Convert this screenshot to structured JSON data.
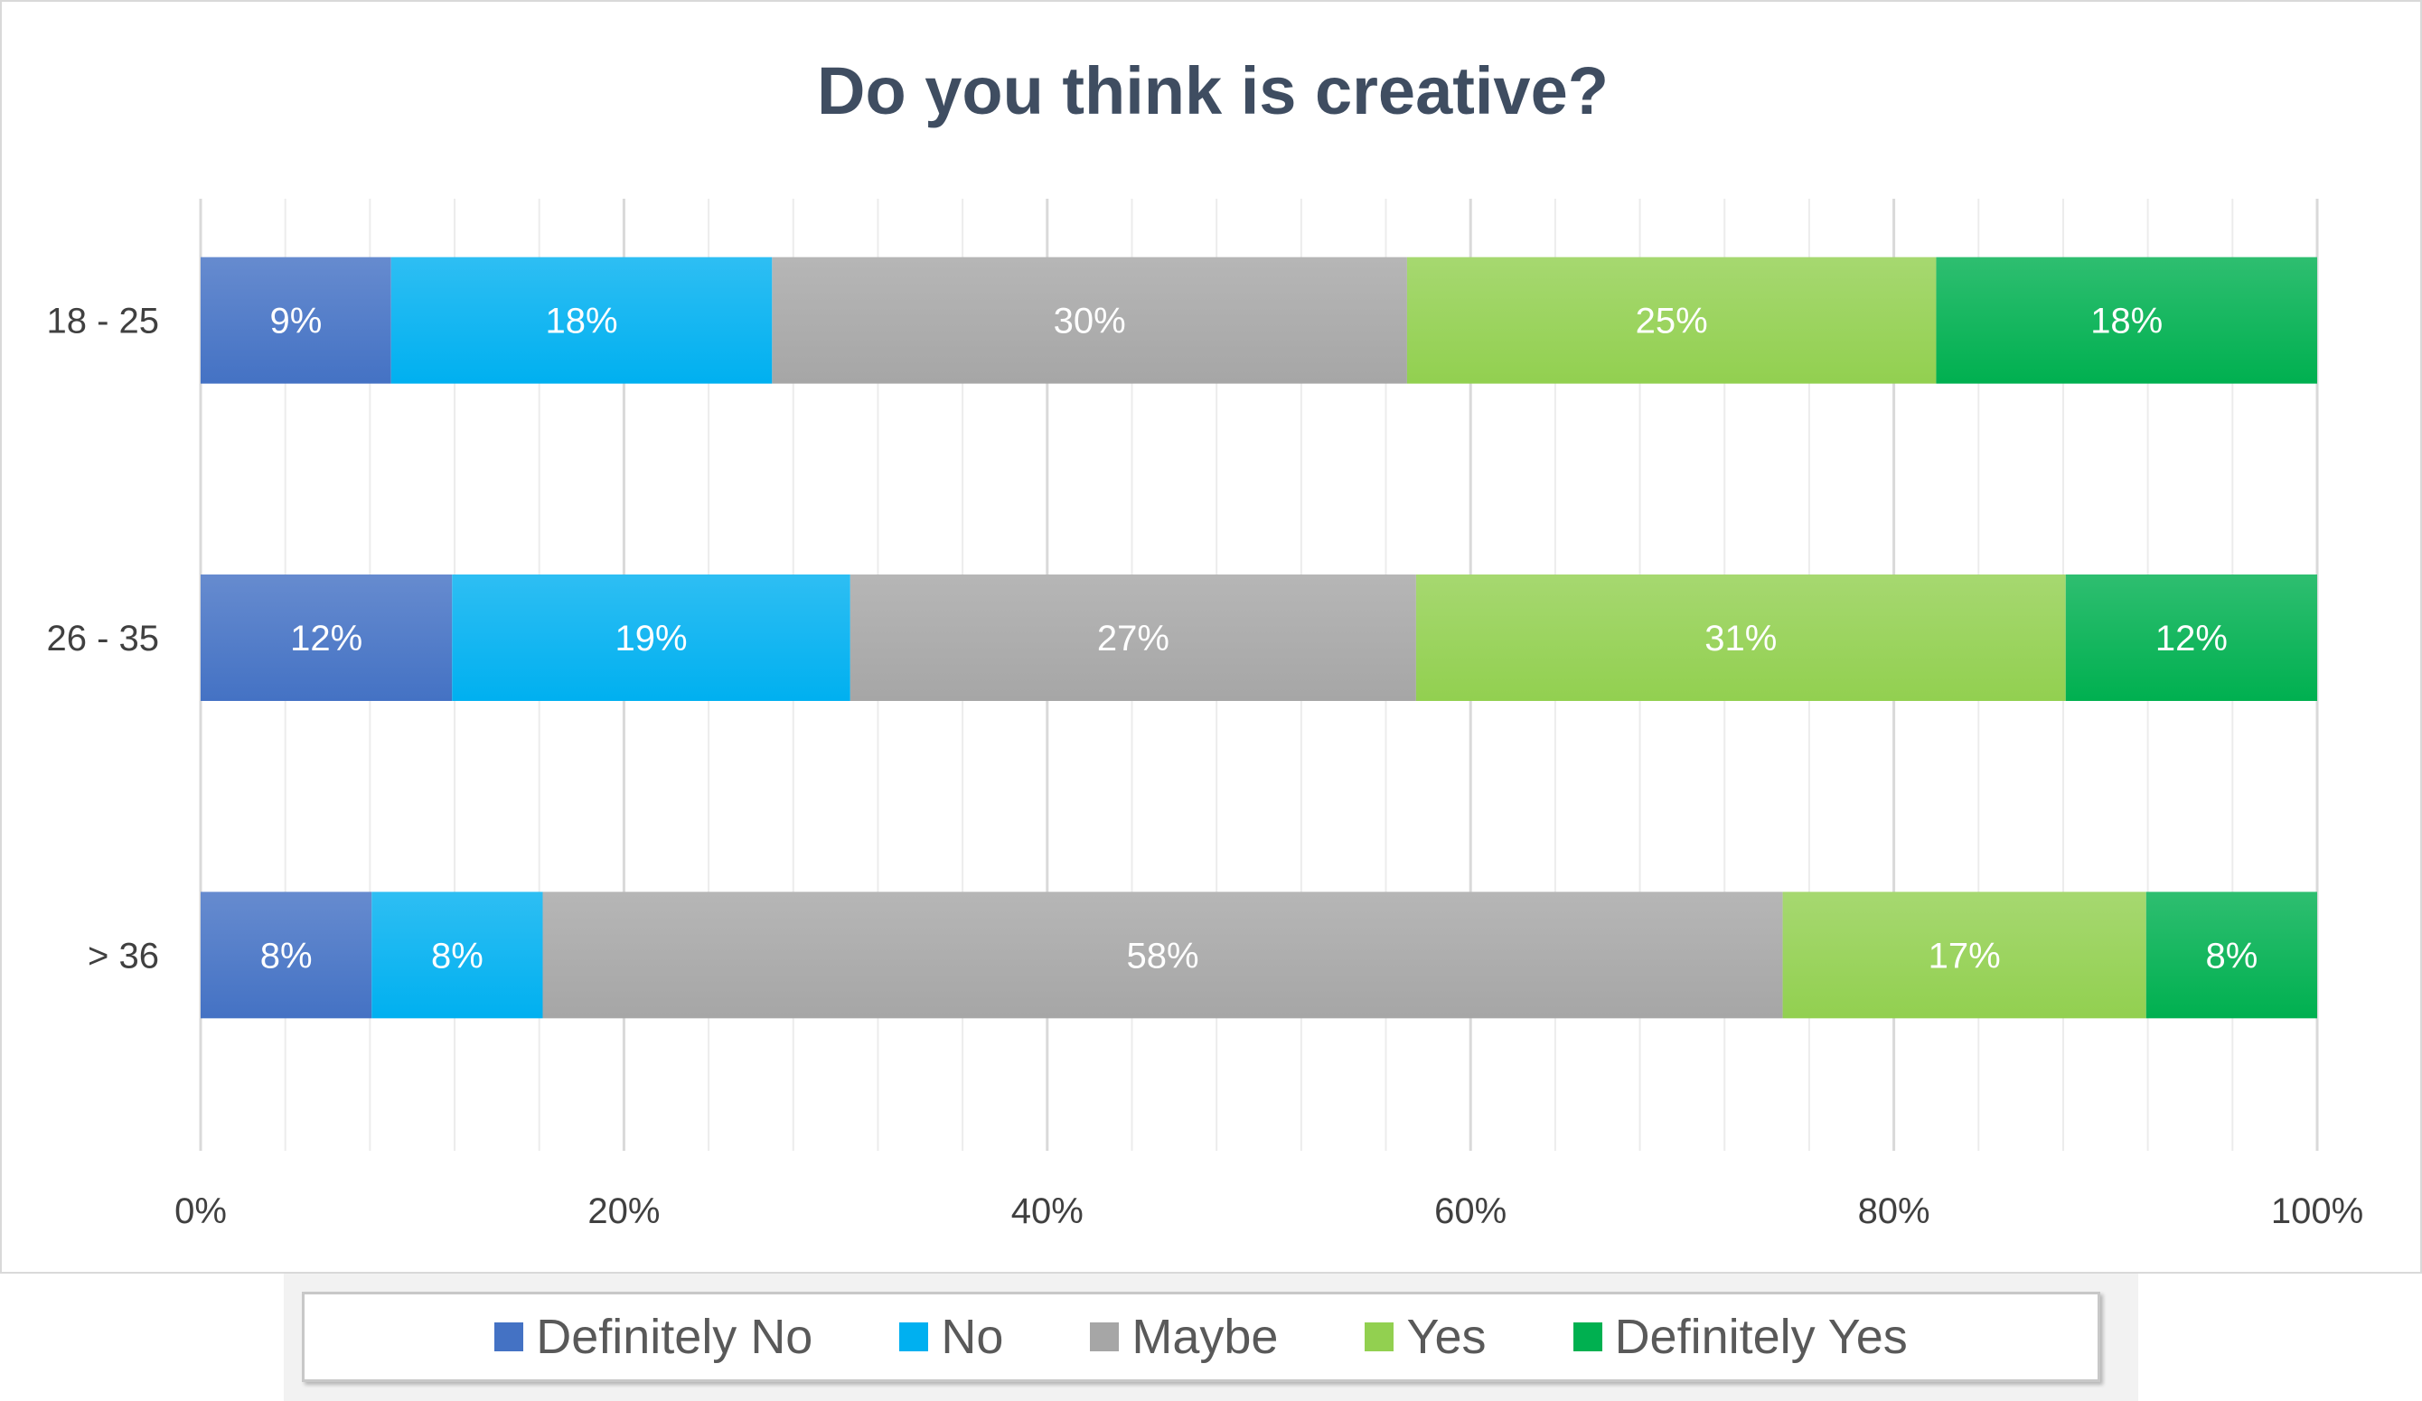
{
  "chart_data": {
    "type": "bar",
    "orientation": "horizontal",
    "stacked": "percent",
    "title": "Do you think is creative?",
    "categories": [
      "18 - 25",
      "26 - 35",
      "> 36"
    ],
    "series": [
      {
        "name": "Definitely No",
        "color": "#4472c4",
        "values": [
          9,
          12,
          8
        ],
        "labels": [
          "9%",
          "12%",
          "8%"
        ]
      },
      {
        "name": "No",
        "color": "#00b0f0",
        "values": [
          18,
          19,
          8
        ],
        "labels": [
          "18%",
          "19%",
          "8%"
        ]
      },
      {
        "name": "Maybe",
        "color": "#a6a6a6",
        "values": [
          30,
          27,
          58
        ],
        "labels": [
          "30%",
          "27%",
          "58%"
        ]
      },
      {
        "name": "Yes",
        "color": "#92d050",
        "values": [
          25,
          31,
          17
        ],
        "labels": [
          "25%",
          "31%",
          "17%"
        ]
      },
      {
        "name": "Definitely Yes",
        "color": "#00b050",
        "values": [
          18,
          12,
          8
        ],
        "labels": [
          "18%",
          "12%",
          "8%"
        ]
      }
    ],
    "xlim": [
      0,
      100
    ],
    "x_ticks": [
      "0%",
      "20%",
      "40%",
      "60%",
      "80%",
      "100%"
    ],
    "grid": true,
    "legend_position": "bottom"
  }
}
